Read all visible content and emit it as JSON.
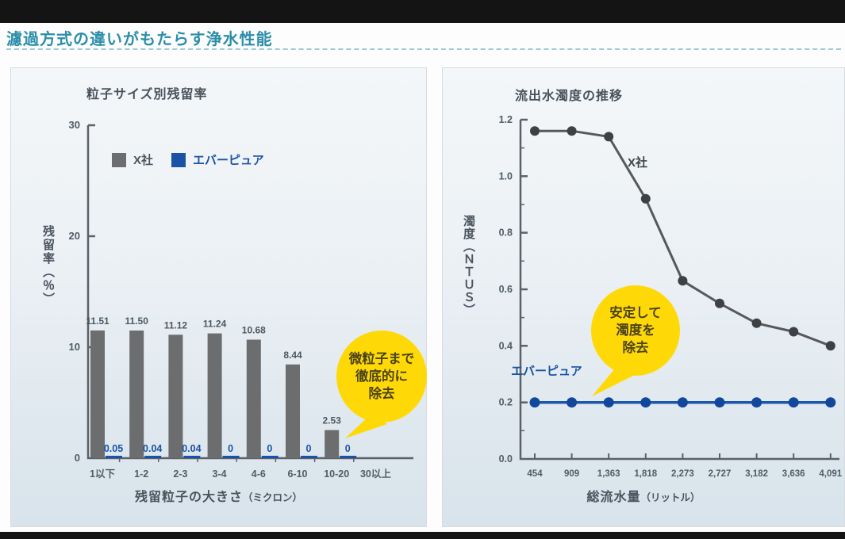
{
  "header": {
    "title": "濾過方式の違いがもたらす浄水性能"
  },
  "colors": {
    "accent_teal": "#2b8ea9",
    "bar_gray": "#6b6d6f",
    "brand_blue": "#1a53a5",
    "line_dark": "#55595c",
    "dot_dark": "#3e4144",
    "dot_blue": "#11489c",
    "bubble_yellow": "#ffd907",
    "bubble_text": "#4b431b",
    "axis": "#5b6167",
    "tick_text": "#515c66"
  },
  "chart_data": [
    {
      "type": "bar",
      "title": "粒子サイズ別残留率",
      "ylabel": "残留率（％）",
      "xlabel": "残留粒子の大きさ",
      "xlabel_unit": "（ミクロン）",
      "ylim": [
        0,
        30
      ],
      "yticks": [
        0,
        10,
        20,
        30
      ],
      "grid": false,
      "legend_position": "top-left",
      "categories": [
        "1以下",
        "1-2",
        "2-3",
        "3-4",
        "4-6",
        "6-10",
        "10-20",
        "30以上"
      ],
      "series": [
        {
          "name": "X社",
          "color": "#6b6d6f",
          "values": [
            11.51,
            11.5,
            11.12,
            11.24,
            10.68,
            8.44,
            2.53,
            null
          ]
        },
        {
          "name": "エバーピュア",
          "color": "#1a53a5",
          "values": [
            0.05,
            0.04,
            0.04,
            0,
            0,
            0,
            0,
            null
          ]
        }
      ],
      "annotation": {
        "lines": [
          "微粒子まで",
          "徹底的に",
          "除去"
        ]
      }
    },
    {
      "type": "line",
      "title": "流出水濁度の推移",
      "ylabel": "濁度（ＮＴＵＳ）",
      "xlabel": "総流水量",
      "xlabel_unit": "（リットル）",
      "ylim": [
        0.0,
        1.2
      ],
      "yticks": [
        0,
        0.2,
        0.4,
        0.6,
        0.8,
        1.0,
        1.2
      ],
      "grid": false,
      "x_categories": [
        "454",
        "909",
        "1,363",
        "1,818",
        "2,273",
        "2,727",
        "3,182",
        "3,636",
        "4,091"
      ],
      "series": [
        {
          "name": "X社",
          "color": "#55595c",
          "values": [
            1.16,
            1.16,
            1.14,
            0.92,
            0.63,
            0.55,
            0.48,
            0.45,
            0.4
          ]
        },
        {
          "name": "エバーピュア",
          "color": "#1b57ab",
          "values": [
            0.2,
            0.2,
            0.2,
            0.2,
            0.2,
            0.2,
            0.2,
            0.2,
            0.2
          ]
        }
      ],
      "annotation": {
        "lines": [
          "安定して",
          "濁度を",
          "除去"
        ]
      }
    }
  ]
}
